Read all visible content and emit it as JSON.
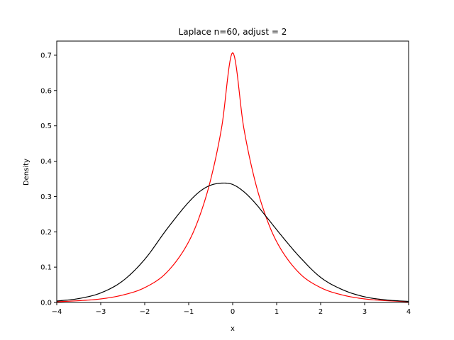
{
  "chart_data": {
    "type": "line",
    "title": "Laplace n=60, adjust = 2",
    "xlabel": "x",
    "ylabel": "Density",
    "xlim": [
      -4,
      4
    ],
    "ylim": [
      0,
      0.74
    ],
    "xticks": [
      -4,
      -3,
      -2,
      -1,
      0,
      1,
      2,
      3,
      4
    ],
    "xtick_labels": [
      "−4",
      "−3",
      "−2",
      "−1",
      "0",
      "1",
      "2",
      "3",
      "4"
    ],
    "yticks": [
      0.0,
      0.1,
      0.2,
      0.3,
      0.4,
      0.5,
      0.6,
      0.7
    ],
    "ytick_labels": [
      "0.0",
      "0.1",
      "0.2",
      "0.3",
      "0.4",
      "0.5",
      "0.6",
      "0.7"
    ],
    "grid": false,
    "legend": false,
    "series": [
      {
        "color": "#ff0000",
        "x": [
          -4.0,
          -3.5,
          -3.0,
          -2.5,
          -2.0,
          -1.5,
          -1.0,
          -0.75,
          -0.5,
          -0.25,
          0.0,
          0.25,
          0.5,
          0.75,
          1.0,
          1.5,
          2.0,
          2.5,
          3.0,
          3.5,
          4.0
        ],
        "y": [
          0.002,
          0.005,
          0.01,
          0.021,
          0.042,
          0.085,
          0.172,
          0.245,
          0.348,
          0.496,
          0.707,
          0.496,
          0.348,
          0.245,
          0.172,
          0.085,
          0.042,
          0.021,
          0.01,
          0.005,
          0.002
        ]
      },
      {
        "color": "#000000",
        "x": [
          -4.0,
          -3.5,
          -3.0,
          -2.5,
          -2.0,
          -1.5,
          -1.0,
          -0.75,
          -0.5,
          -0.2,
          0.0,
          0.25,
          0.5,
          0.75,
          1.0,
          1.25,
          1.5,
          2.0,
          2.5,
          3.0,
          3.5,
          4.0
        ],
        "y": [
          0.004,
          0.011,
          0.027,
          0.061,
          0.122,
          0.207,
          0.284,
          0.314,
          0.332,
          0.338,
          0.334,
          0.314,
          0.283,
          0.245,
          0.206,
          0.168,
          0.132,
          0.071,
          0.036,
          0.016,
          0.007,
          0.003
        ]
      }
    ]
  }
}
